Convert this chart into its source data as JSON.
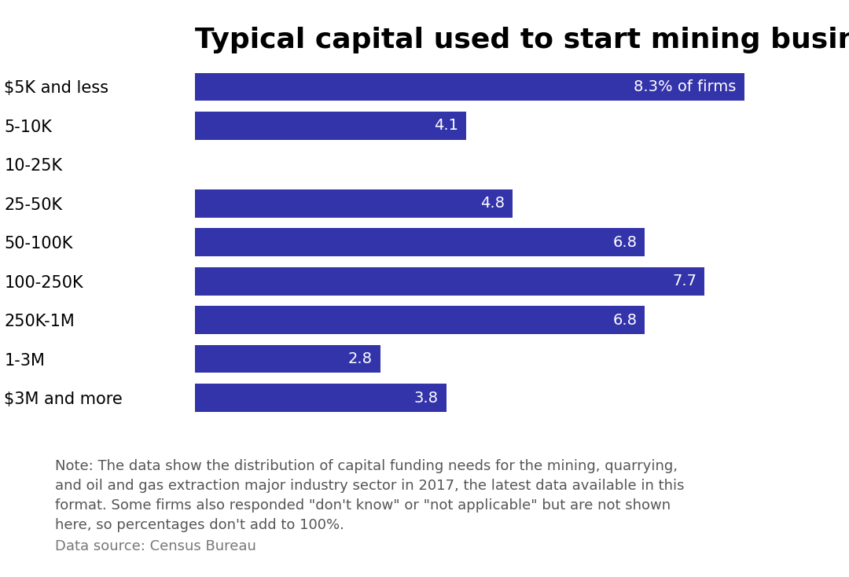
{
  "title": "Typical capital used to start mining businesses",
  "categories": [
    "$5K and less",
    "5-10K",
    "10-25K",
    "25-50K",
    "50-100K",
    "100-250K",
    "250K-1M",
    "1-3M",
    "$3M and more"
  ],
  "values": [
    8.3,
    4.1,
    0.0,
    4.8,
    6.8,
    7.7,
    6.8,
    2.8,
    3.8
  ],
  "bar_color": "#3333aa",
  "label_color": "#ffffff",
  "label_special": "8.3% of firms",
  "label_special_index": 0,
  "xlim": [
    0,
    9.5
  ],
  "note_text": "Note: The data show the distribution of capital funding needs for the mining, quarrying,\nand oil and gas extraction major industry sector in 2017, the latest data available in this\nformat. Some firms also responded \"don't know\" or \"not applicable\" but are not shown\nhere, so percentages don't add to 100%.",
  "source_text": "Data source: Census Bureau",
  "title_fontsize": 26,
  "category_fontsize": 15,
  "label_fontsize": 14,
  "note_fontsize": 13,
  "source_fontsize": 13,
  "background_color": "#ffffff"
}
